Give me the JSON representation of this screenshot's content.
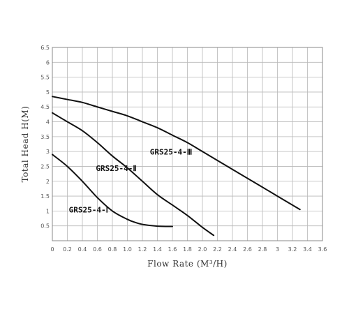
{
  "chart_data": {
    "type": "line",
    "title": "",
    "xlabel": "Flow Rate (M³/H)",
    "ylabel": "Total Head H(M)",
    "xlim": [
      0,
      3.6
    ],
    "ylim": [
      0,
      6.5
    ],
    "x_ticks": [
      "0",
      "0.2",
      "0.4",
      "0.6",
      "0.8",
      "1.0",
      "1.2",
      "1.4",
      "1.6",
      "1.8",
      "2.0",
      "2.2",
      "2.4",
      "2.6",
      "2.8",
      "3",
      "3.2",
      "3.4",
      "3.6"
    ],
    "y_ticks": [
      "0.5",
      "1",
      "1.5",
      "2",
      "2.5",
      "3",
      "3.5",
      "4",
      "4.5",
      "5",
      "5.5",
      "6",
      "6.5"
    ],
    "grid": true,
    "legend": "none",
    "series": [
      {
        "name": "GRS25-4-Ⅰ",
        "x": [
          0,
          0.2,
          0.4,
          0.6,
          0.8,
          1.0,
          1.1,
          1.2,
          1.4,
          1.6
        ],
        "y": [
          2.9,
          2.5,
          2.0,
          1.45,
          1.0,
          0.72,
          0.62,
          0.55,
          0.49,
          0.48
        ]
      },
      {
        "name": "GRS25-4-Ⅱ",
        "x": [
          0,
          0.2,
          0.4,
          0.6,
          0.8,
          1.0,
          1.2,
          1.4,
          1.6,
          1.8,
          2.0,
          2.15
        ],
        "y": [
          4.3,
          4.0,
          3.7,
          3.3,
          2.85,
          2.45,
          2.0,
          1.55,
          1.2,
          0.85,
          0.45,
          0.18
        ]
      },
      {
        "name": "GRS25-4-Ⅲ",
        "x": [
          0,
          0.2,
          0.4,
          0.6,
          0.8,
          1.0,
          1.2,
          1.4,
          1.6,
          1.8,
          2.0,
          2.4,
          2.8,
          3.0,
          3.3
        ],
        "y": [
          4.85,
          4.75,
          4.65,
          4.5,
          4.35,
          4.2,
          4.0,
          3.8,
          3.55,
          3.3,
          3.0,
          2.4,
          1.8,
          1.5,
          1.05
        ]
      }
    ],
    "labels": [
      {
        "text": "GRS25-4-Ⅰ",
        "x": 0.22,
        "y": 0.95
      },
      {
        "text": "GRS25-4-Ⅱ",
        "x": 0.58,
        "y": 2.35
      },
      {
        "text": "GRS25-4-Ⅲ",
        "x": 1.3,
        "y": 2.9
      }
    ]
  }
}
